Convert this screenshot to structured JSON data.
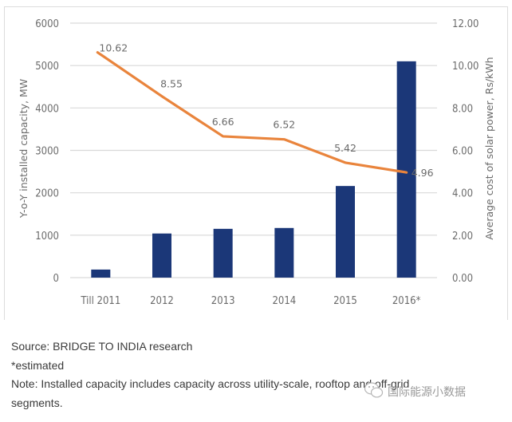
{
  "chart_data": {
    "type": "bar+line",
    "title": "",
    "categories": [
      "Till 2011",
      "2012",
      "2013",
      "2014",
      "2015",
      "2016*"
    ],
    "series": [
      {
        "name": "Y-o-Y installed capacity, MW",
        "type": "bar",
        "axis": "left",
        "color": "#1b3778",
        "values": [
          190,
          1040,
          1150,
          1170,
          2160,
          5100
        ]
      },
      {
        "name": "Average cost of solar power, Rs/kWh",
        "type": "line",
        "axis": "right",
        "color": "#e9843c",
        "values": [
          10.62,
          8.55,
          6.66,
          6.52,
          5.42,
          4.96
        ],
        "labels": [
          "10.62",
          "8.55",
          "6.66",
          "6.52",
          "5.42",
          "4.96"
        ]
      }
    ],
    "ylabel": "Y-o-Y installed capacity, MW",
    "ylim": [
      0,
      6000
    ],
    "yticks": [
      "0",
      "1000",
      "2000",
      "3000",
      "4000",
      "5000",
      "6000"
    ],
    "y2label": "Average cost of solar power, Rs/kWh",
    "y2lim": [
      0,
      12
    ],
    "y2ticks": [
      "0.00",
      "2.00",
      "4.00",
      "6.00",
      "8.00",
      "10.00",
      "12.00"
    ],
    "grid": true,
    "legend": "none"
  },
  "notes": {
    "source": "Source: BRIDGE TO INDIA research",
    "estimated": "*estimated",
    "note_line1": "Note: Installed capacity includes capacity across utility-scale, rooftop and off-grid",
    "note_line2": "segments."
  },
  "watermark": {
    "text": "国际能源小数据",
    "icon": "wechat-icon"
  }
}
